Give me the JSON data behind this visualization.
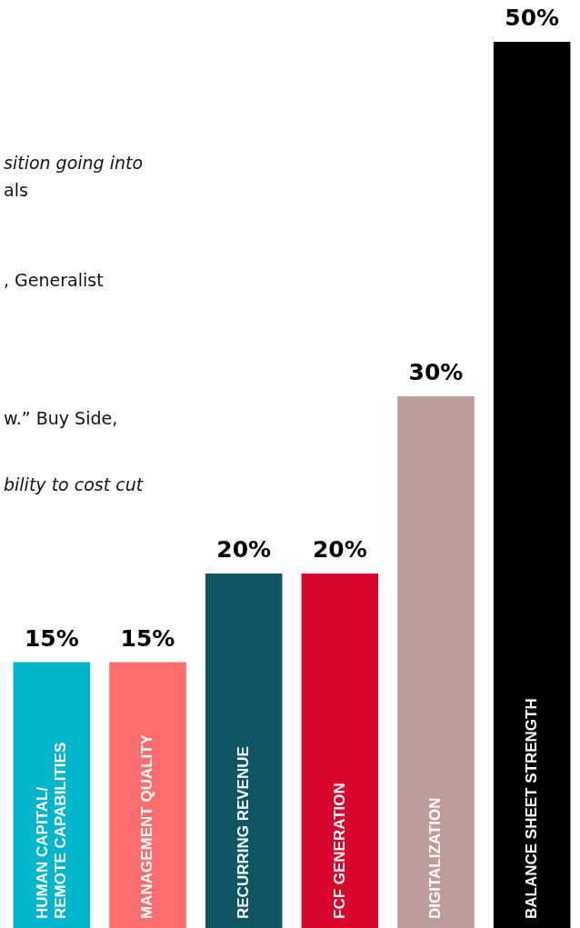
{
  "chart_data": {
    "type": "bar",
    "categories": [
      "HUMAN CAPITAL/\nREMOTE CAPABILITIES",
      "MANAGEMENT QUALITY",
      "RECURRING REVENUE",
      "FCF GENERATION",
      "DIGITALIZATION",
      "BALANCE SHEET STRENGTH"
    ],
    "values": [
      15,
      15,
      20,
      20,
      30,
      50
    ],
    "colors": [
      "#00b5cc",
      "#ff6e6e",
      "#0f5662",
      "#d9042b",
      "#be9c97",
      "#000000"
    ],
    "value_labels": [
      "15%",
      "15%",
      "20%",
      "20%",
      "30%",
      "50%"
    ],
    "annotations": [
      "sition going into",
      "als",
      ", Generalist",
      "w.” Buy Side,",
      "bility to cost cut"
    ]
  }
}
